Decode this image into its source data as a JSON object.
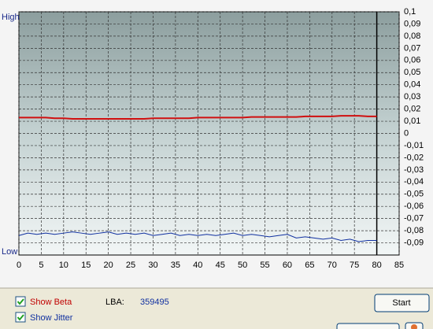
{
  "chart_data": {
    "type": "line",
    "y_top_label": "High",
    "y_bottom_label": "Low",
    "x": [
      0,
      2,
      4,
      6,
      8,
      10,
      12,
      14,
      16,
      18,
      20,
      22,
      24,
      26,
      28,
      30,
      32,
      34,
      36,
      38,
      40,
      42,
      44,
      46,
      48,
      50,
      52,
      54,
      56,
      58,
      60,
      62,
      64,
      66,
      68,
      70,
      72,
      74,
      76,
      78,
      80
    ],
    "series": [
      {
        "name": "Beta",
        "color": "#d01010",
        "values": [
          0.013,
          0.013,
          0.013,
          0.013,
          0.0125,
          0.0125,
          0.012,
          0.012,
          0.012,
          0.012,
          0.012,
          0.012,
          0.012,
          0.012,
          0.012,
          0.0125,
          0.0125,
          0.0125,
          0.0125,
          0.0125,
          0.013,
          0.013,
          0.013,
          0.013,
          0.013,
          0.013,
          0.0135,
          0.0135,
          0.0135,
          0.0135,
          0.0135,
          0.0135,
          0.014,
          0.014,
          0.014,
          0.014,
          0.0145,
          0.0145,
          0.0145,
          0.014,
          0.014
        ]
      },
      {
        "name": "Jitter",
        "color": "#1030a0",
        "values": [
          -0.084,
          -0.082,
          -0.083,
          -0.082,
          -0.083,
          -0.082,
          -0.081,
          -0.082,
          -0.083,
          -0.082,
          -0.081,
          -0.083,
          -0.082,
          -0.083,
          -0.082,
          -0.084,
          -0.083,
          -0.082,
          -0.084,
          -0.083,
          -0.084,
          -0.083,
          -0.084,
          -0.083,
          -0.082,
          -0.084,
          -0.083,
          -0.084,
          -0.085,
          -0.084,
          -0.083,
          -0.086,
          -0.085,
          -0.086,
          -0.087,
          -0.086,
          -0.088,
          -0.087,
          -0.089,
          -0.088,
          -0.088
        ]
      }
    ],
    "xlim": [
      0,
      85
    ],
    "xticks": [
      0,
      5,
      10,
      15,
      20,
      25,
      30,
      35,
      40,
      45,
      50,
      55,
      60,
      65,
      70,
      75,
      80,
      85
    ],
    "ylim": [
      -0.1,
      0.1
    ],
    "yticks": [
      {
        "value": 0.1,
        "label": "0,1"
      },
      {
        "value": 0.09,
        "label": "0,09"
      },
      {
        "value": 0.08,
        "label": "0,08"
      },
      {
        "value": 0.07,
        "label": "0,07"
      },
      {
        "value": 0.06,
        "label": "0,06"
      },
      {
        "value": 0.05,
        "label": "0,05"
      },
      {
        "value": 0.04,
        "label": "0,04"
      },
      {
        "value": 0.03,
        "label": "0,03"
      },
      {
        "value": 0.02,
        "label": "0,02"
      },
      {
        "value": 0.01,
        "label": "0,01"
      },
      0,
      {
        "value": -0.01,
        "label": "-0,01"
      },
      {
        "value": -0.02,
        "label": "-0,02"
      },
      {
        "value": -0.03,
        "label": "-0,03"
      },
      {
        "value": -0.04,
        "label": "-0,04"
      },
      {
        "value": -0.05,
        "label": "-0,05"
      },
      {
        "value": -0.06,
        "label": "-0,06"
      },
      {
        "value": -0.07,
        "label": "-0,07"
      },
      {
        "value": -0.08,
        "label": "-0,08"
      },
      {
        "value": -0.09,
        "label": "-0,09"
      }
    ],
    "grid": true
  },
  "controls": {
    "show_beta": "Show Beta",
    "show_jitter": "Show Jitter",
    "lba_label": "LBA:",
    "lba_value": "359495",
    "start_button": "Start"
  }
}
